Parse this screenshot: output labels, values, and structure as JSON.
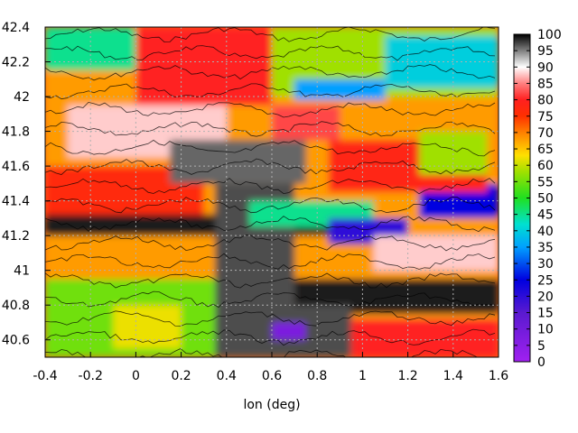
{
  "chart_data": {
    "type": "heatmap",
    "title": "",
    "xlabel": "lon (deg)",
    "ylabel": "",
    "xlim": [
      -0.4,
      1.6
    ],
    "ylim": [
      40.5,
      42.4
    ],
    "x_ticks": [
      "-0.4",
      "-0.2",
      "0",
      "0.2",
      "0.4",
      "0.6",
      "0.8",
      "1",
      "1.2",
      "1.4",
      "1.6"
    ],
    "y_ticks": [
      "40.6",
      "40.8",
      "41",
      "41.2",
      "41.4",
      "41.6",
      "41.8",
      "42",
      "42.2",
      "42.4"
    ],
    "colorbar": {
      "range": [
        0,
        100
      ],
      "ticks": [
        "0",
        "5",
        "10",
        "15",
        "20",
        "25",
        "30",
        "35",
        "40",
        "45",
        "50",
        "55",
        "60",
        "65",
        "70",
        "75",
        "80",
        "85",
        "90",
        "95",
        "100"
      ],
      "stops": [
        {
          "v": 0,
          "c": "#a020f0"
        },
        {
          "v": 15,
          "c": "#5a1ad0"
        },
        {
          "v": 25,
          "c": "#0000e0"
        },
        {
          "v": 35,
          "c": "#00a0ff"
        },
        {
          "v": 42,
          "c": "#00e0d0"
        },
        {
          "v": 50,
          "c": "#20e020"
        },
        {
          "v": 58,
          "c": "#a0e000"
        },
        {
          "v": 63,
          "c": "#ffe000"
        },
        {
          "v": 70,
          "c": "#ff8000"
        },
        {
          "v": 75,
          "c": "#ff3000"
        },
        {
          "v": 80,
          "c": "#ff2020"
        },
        {
          "v": 85,
          "c": "#ff8080"
        },
        {
          "v": 90,
          "c": "#ffffff"
        },
        {
          "v": 95,
          "c": "#808080"
        },
        {
          "v": 100,
          "c": "#000000"
        }
      ]
    },
    "grid": "dashed",
    "contours": true,
    "regions": [
      {
        "x": [
          -0.4,
          1.6
        ],
        "y": [
          40.5,
          42.4
        ],
        "v": 68
      },
      {
        "x": [
          -0.4,
          0.45
        ],
        "y": [
          40.5,
          40.95
        ],
        "v": 55
      },
      {
        "x": [
          -0.4,
          0.3
        ],
        "y": [
          41.25,
          41.6
        ],
        "v": 77
      },
      {
        "x": [
          -0.4,
          0.35
        ],
        "y": [
          42.15,
          42.4
        ],
        "v": 45
      },
      {
        "x": [
          0.0,
          0.6
        ],
        "y": [
          41.95,
          42.4
        ],
        "v": 80
      },
      {
        "x": [
          0.6,
          1.6
        ],
        "y": [
          42.0,
          42.4
        ],
        "v": 58
      },
      {
        "x": [
          1.1,
          1.6
        ],
        "y": [
          42.05,
          42.35
        ],
        "v": 40
      },
      {
        "x": [
          -0.3,
          0.4
        ],
        "y": [
          41.65,
          41.95
        ],
        "v": 88
      },
      {
        "x": [
          0.15,
          0.75
        ],
        "y": [
          41.5,
          41.75
        ],
        "v": 96
      },
      {
        "x": [
          -0.4,
          0.9
        ],
        "y": [
          41.2,
          41.3
        ],
        "v": 99
      },
      {
        "x": [
          -0.4,
          0.35
        ],
        "y": [
          41.25,
          41.32
        ],
        "v": 99
      },
      {
        "x": [
          0.35,
          0.7
        ],
        "y": [
          40.5,
          41.5
        ],
        "v": 97
      },
      {
        "x": [
          0.5,
          1.05
        ],
        "y": [
          41.25,
          41.4
        ],
        "v": 45
      },
      {
        "x": [
          0.85,
          1.2
        ],
        "y": [
          41.15,
          41.3
        ],
        "v": 20
      },
      {
        "x": [
          1.25,
          1.6
        ],
        "y": [
          41.3,
          41.5
        ],
        "v": 25
      },
      {
        "x": [
          1.05,
          1.6
        ],
        "y": [
          41.0,
          41.2
        ],
        "v": 88
      },
      {
        "x": [
          0.7,
          1.6
        ],
        "y": [
          40.75,
          40.95
        ],
        "v": 99
      },
      {
        "x": [
          0.45,
          0.95
        ],
        "y": [
          40.5,
          40.8
        ],
        "v": 97
      },
      {
        "x": [
          0.95,
          1.6
        ],
        "y": [
          40.5,
          40.72
        ],
        "v": 80
      },
      {
        "x": [
          0.85,
          1.55
        ],
        "y": [
          41.45,
          41.75
        ],
        "v": 78
      },
      {
        "x": [
          1.25,
          1.55
        ],
        "y": [
          41.55,
          41.8
        ],
        "v": 58
      },
      {
        "x": [
          0.6,
          0.9
        ],
        "y": [
          41.75,
          41.95
        ],
        "v": 82
      },
      {
        "x": [
          0.7,
          1.1
        ],
        "y": [
          41.98,
          42.1
        ],
        "v": 35
      },
      {
        "x": [
          -0.1,
          0.2
        ],
        "y": [
          40.55,
          40.8
        ],
        "v": 62
      },
      {
        "x": [
          0.6,
          0.75
        ],
        "y": [
          40.6,
          40.7
        ],
        "v": 8
      }
    ]
  }
}
